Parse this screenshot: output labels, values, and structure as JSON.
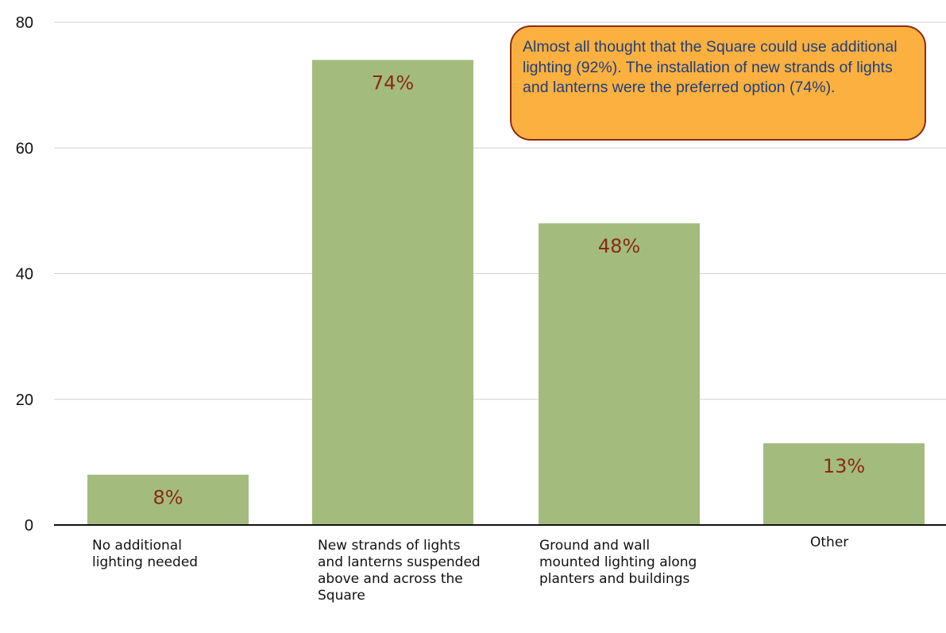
{
  "chart_data": {
    "type": "bar",
    "categories": [
      "No additional lighting needed",
      "New strands of lights and lanterns suspended above and across the Square",
      "Ground and wall mounted lighting along planters and buildings",
      "Other"
    ],
    "values": [
      8,
      74,
      48,
      13
    ],
    "data_labels": [
      "8%",
      "74%",
      "48%",
      "13%"
    ],
    "yticks": [
      "0",
      "20",
      "40",
      "60",
      "80"
    ],
    "ylim": [
      0,
      80
    ],
    "grid": true,
    "annotation": "Almost all thought that the Square could use additional lighting (92%). The installation of new strands of lights and lanterns were the preferred option (74%).",
    "colors": {
      "bar": "#a3bc7e",
      "data_label": "#8b2a14",
      "callout_fill": "#fbb040",
      "callout_border": "#8a2b14",
      "callout_text": "#1f3f7a",
      "grid": "#cfcfcf"
    }
  }
}
